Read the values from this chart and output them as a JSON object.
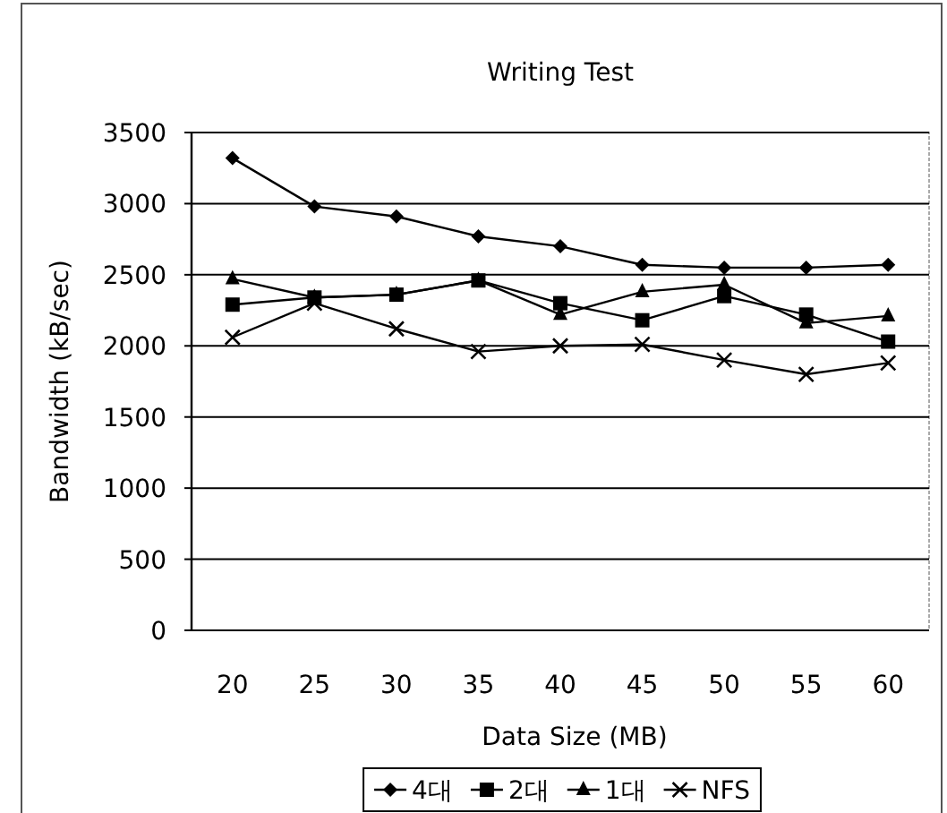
{
  "chart_data": {
    "type": "line",
    "title": "Writing Test",
    "xlabel": "Data Size (MB)",
    "ylabel": "Bandwidth (kB/sec)",
    "categories": [
      "20",
      "25",
      "30",
      "35",
      "40",
      "45",
      "50",
      "55",
      "60"
    ],
    "series": [
      {
        "name": "4대",
        "color": "#000000",
        "marker": "diamond",
        "values": [
          3320,
          2980,
          2910,
          2770,
          2700,
          2570,
          2550,
          2550,
          2570
        ]
      },
      {
        "name": "2대",
        "color": "#000000",
        "marker": "square",
        "values": [
          2290,
          2340,
          2360,
          2460,
          2300,
          2180,
          2350,
          2220,
          2030
        ]
      },
      {
        "name": "1대",
        "color": "#000000",
        "marker": "triangle",
        "values": [
          2470,
          2340,
          2360,
          2460,
          2220,
          2380,
          2430,
          2160,
          2210
        ]
      },
      {
        "name": "NFS",
        "color": "#000000",
        "marker": "cross",
        "values": [
          2060,
          2300,
          2120,
          1960,
          2000,
          2010,
          1900,
          1800,
          1880
        ]
      }
    ],
    "ylim": [
      0,
      3500
    ],
    "yticks": [
      0,
      500,
      1000,
      1500,
      2000,
      2500,
      3000,
      3500
    ],
    "grid": "y",
    "legend": "bottom"
  }
}
